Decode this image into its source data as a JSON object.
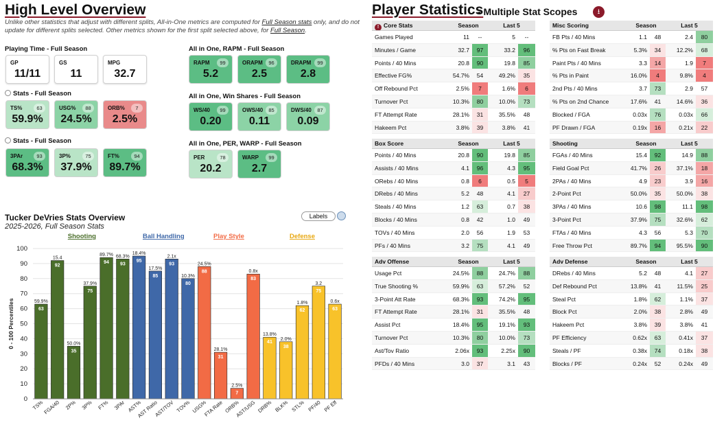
{
  "overview": {
    "title": "High Level Overview",
    "note_pre": "Unlike other statistics that adjust with different splits, All-in-One metrics are computed for ",
    "note_link1": "Full Season stats",
    "note_mid": " only, and do not update for different splits selected. Other metrics shown for the first split selected above, for ",
    "note_link2": "Full Season",
    "note_end": ".",
    "playing_time": {
      "label": "Playing Time - Full Season",
      "cards": [
        {
          "label": "GP",
          "value": "11/11"
        },
        {
          "label": "GS",
          "value": "11"
        },
        {
          "label": "MPG",
          "value": "32.7"
        }
      ]
    },
    "stats1": {
      "label": "Stats - Full Season",
      "cards": [
        {
          "label": "TS%",
          "pct": "63",
          "value": "59.9%"
        },
        {
          "label": "USG%",
          "pct": "88",
          "value": "24.5%"
        },
        {
          "label": "ORB%",
          "pct": "7",
          "value": "2.5%"
        }
      ]
    },
    "stats2": {
      "label": "Stats - Full Season",
      "cards": [
        {
          "label": "3PAr",
          "pct": "93",
          "value": "68.3%"
        },
        {
          "label": "3P%",
          "pct": "75",
          "value": "37.9%"
        },
        {
          "label": "FT%",
          "pct": "94",
          "value": "89.7%"
        }
      ]
    },
    "rapm": {
      "label": "All in One, RAPM - Full Season",
      "cards": [
        {
          "label": "RAPM",
          "pct": "99",
          "value": "5.2"
        },
        {
          "label": "ORAPM",
          "pct": "96",
          "value": "2.5"
        },
        {
          "label": "DRAPM",
          "pct": "99",
          "value": "2.8"
        }
      ]
    },
    "ws": {
      "label": "All in One, Win Shares - Full Season",
      "cards": [
        {
          "label": "WS/40",
          "pct": "99",
          "value": "0.20"
        },
        {
          "label": "OWS/40",
          "pct": "85",
          "value": "0.11"
        },
        {
          "label": "DWS/40",
          "pct": "87",
          "value": "0.09"
        }
      ]
    },
    "per": {
      "label": "All in One, PER, WARP - Full Season",
      "cards": [
        {
          "label": "PER",
          "pct": "78",
          "value": "20.2"
        },
        {
          "label": "WARP",
          "pct": "99",
          "value": "2.7"
        }
      ]
    }
  },
  "chart_header": {
    "title": "Tucker DeVries Stats Overview",
    "subtitle": "2025-2026, Full Season Stats",
    "labels_button": "Labels"
  },
  "chart_data": {
    "type": "bar",
    "title": "Tucker DeVries Stats Overview",
    "ylabel": "0 - 100 Percentiles",
    "ylim": [
      0,
      100
    ],
    "yticks": [
      0,
      10,
      20,
      30,
      40,
      50,
      60,
      70,
      80,
      90,
      100
    ],
    "groups": [
      {
        "name": "Shooting",
        "color": "#4a6e2a",
        "labelColor": "#4a6e2a"
      },
      {
        "name": "Ball Handling",
        "color": "#3f68a8",
        "labelColor": "#3f68a8"
      },
      {
        "name": "Play Style",
        "color": "#f26b45",
        "labelColor": "#f26b45"
      },
      {
        "name": "Defense",
        "color": "#f8c22a",
        "labelColor": "#e8a812"
      }
    ],
    "categories": [
      "TS%",
      "FGA/40",
      "2P%",
      "3P%",
      "FT%",
      "3PAr",
      "AST%",
      "AST Ratio",
      "AST/TOV",
      "TOV%",
      "USG%",
      "FTA Rate",
      "ORB%",
      "AST/USG",
      "DRB%",
      "BLK%",
      "STL%",
      "PF/40",
      "PF Eff"
    ],
    "group_index": [
      0,
      0,
      0,
      0,
      0,
      0,
      1,
      1,
      1,
      1,
      2,
      2,
      2,
      2,
      3,
      3,
      3,
      3,
      3
    ],
    "values": [
      63,
      92,
      35,
      75,
      94,
      93,
      95,
      85,
      93,
      80,
      88,
      31,
      7,
      83,
      41,
      38,
      62,
      75,
      63
    ],
    "raw_labels": [
      "59.9%",
      "15.4",
      "50.0%",
      "37.9%",
      "89.7%",
      "68.3%",
      "18.4%",
      "17.5%",
      "2.1x",
      "10.3%",
      "24.5%",
      "28.1%",
      "2.5%",
      "0.8x",
      "13.8%",
      "2.0%",
      "1.8%",
      "3.2",
      "0.6x"
    ]
  },
  "player_stats": {
    "title": "Player Statistics",
    "subtitle": "- Multiple Stat Scopes",
    "icon": "download-icon",
    "col_season": "Season",
    "col_last5": "Last 5",
    "tables": [
      {
        "id": "core",
        "title": "Core Stats",
        "has_icon": true,
        "rows": [
          [
            "Games Played",
            "11",
            "--",
            "5",
            "--"
          ],
          [
            "Minutes / Game",
            "32.7",
            "97",
            "33.2",
            "96"
          ],
          [
            "Points / 40 Mins",
            "20.8",
            "90",
            "19.8",
            "85"
          ],
          [
            "Effective FG%",
            "54.7%",
            "54",
            "49.2%",
            "35"
          ],
          [
            "Off Rebound Pct",
            "2.5%",
            "7",
            "1.6%",
            "6"
          ],
          [
            "Turnover Pct",
            "10.3%",
            "80",
            "10.0%",
            "73"
          ],
          [
            "FT Attempt Rate",
            "28.1%",
            "31",
            "35.5%",
            "48"
          ],
          [
            "Hakeem Pct",
            "3.8%",
            "39",
            "3.8%",
            "41"
          ]
        ]
      },
      {
        "id": "misc",
        "title": "Misc Scoring",
        "has_icon": false,
        "rows": [
          [
            "FB Pts / 40 Mins",
            "1.1",
            "48",
            "2.4",
            "80"
          ],
          [
            "% Pts on Fast Break",
            "5.3%",
            "34",
            "12.2%",
            "68"
          ],
          [
            "Paint Pts / 40 Mins",
            "3.3",
            "14",
            "1.9",
            "7"
          ],
          [
            "% Pts in Paint",
            "16.0%",
            "4",
            "9.8%",
            "4"
          ],
          [
            "2nd Pts / 40 Mins",
            "3.7",
            "73",
            "2.9",
            "57"
          ],
          [
            "% Pts on 2nd Chance",
            "17.6%",
            "41",
            "14.6%",
            "36"
          ],
          [
            "Blocked / FGA",
            "0.03x",
            "76",
            "0.03x",
            "66"
          ],
          [
            "PF Drawn / FGA",
            "0.19x",
            "16",
            "0.21x",
            "22"
          ]
        ]
      },
      {
        "id": "box",
        "title": "Box Score",
        "has_icon": false,
        "rows": [
          [
            "Points / 40 Mins",
            "20.8",
            "90",
            "19.8",
            "85"
          ],
          [
            "Assists / 40 Mins",
            "4.1",
            "96",
            "4.3",
            "95"
          ],
          [
            "ORebs / 40 Mins",
            "0.8",
            "6",
            "0.5",
            "5"
          ],
          [
            "DRebs / 40 Mins",
            "5.2",
            "48",
            "4.1",
            "27"
          ],
          [
            "Steals / 40 Mins",
            "1.2",
            "63",
            "0.7",
            "38"
          ],
          [
            "Blocks / 40 Mins",
            "0.8",
            "42",
            "1.0",
            "49"
          ],
          [
            "TOVs / 40 Mins",
            "2.0",
            "56",
            "1.9",
            "53"
          ],
          [
            "PFs / 40 Mins",
            "3.2",
            "75",
            "4.1",
            "49"
          ]
        ]
      },
      {
        "id": "shooting",
        "title": "Shooting",
        "has_icon": false,
        "rows": [
          [
            "FGAs / 40 Mins",
            "15.4",
            "92",
            "14.9",
            "88"
          ],
          [
            "Field Goal Pct",
            "41.7%",
            "26",
            "37.1%",
            "18"
          ],
          [
            "2PAs / 40 Mins",
            "4.9",
            "23",
            "3.9",
            "16"
          ],
          [
            "2-Point Pct",
            "50.0%",
            "35",
            "50.0%",
            "38"
          ],
          [
            "3PAs / 40 Mins",
            "10.6",
            "98",
            "11.1",
            "98"
          ],
          [
            "3-Point Pct",
            "37.9%",
            "75",
            "32.6%",
            "62"
          ],
          [
            "FTAs / 40 Mins",
            "4.3",
            "56",
            "5.3",
            "70"
          ],
          [
            "Free Throw Pct",
            "89.7%",
            "94",
            "95.5%",
            "90"
          ]
        ]
      },
      {
        "id": "advoff",
        "title": "Adv Offense",
        "has_icon": false,
        "rows": [
          [
            "Usage Pct",
            "24.5%",
            "88",
            "24.7%",
            "88"
          ],
          [
            "True Shooting %",
            "59.9%",
            "63",
            "57.2%",
            "52"
          ],
          [
            "3-Point Att Rate",
            "68.3%",
            "93",
            "74.2%",
            "95"
          ],
          [
            "FT Attempt Rate",
            "28.1%",
            "31",
            "35.5%",
            "48"
          ],
          [
            "Assist Pct",
            "18.4%",
            "95",
            "19.1%",
            "93"
          ],
          [
            "Turnover Pct",
            "10.3%",
            "80",
            "10.0%",
            "73"
          ],
          [
            "Ast/Tov Ratio",
            "2.06x",
            "93",
            "2.25x",
            "90"
          ],
          [
            "PFDs / 40 Mins",
            "3.0",
            "37",
            "3.1",
            "43"
          ]
        ]
      },
      {
        "id": "advdef",
        "title": "Adv Defense",
        "has_icon": false,
        "rows": [
          [
            "DRebs / 40 Mins",
            "5.2",
            "48",
            "4.1",
            "27"
          ],
          [
            "Def Rebound Pct",
            "13.8%",
            "41",
            "11.5%",
            "25"
          ],
          [
            "Steal Pct",
            "1.8%",
            "62",
            "1.1%",
            "37"
          ],
          [
            "Block Pct",
            "2.0%",
            "38",
            "2.8%",
            "49"
          ],
          [
            "Hakeem Pct",
            "3.8%",
            "39",
            "3.8%",
            "41"
          ],
          [
            "PF Efficiency",
            "0.62x",
            "63",
            "0.41x",
            "37"
          ],
          [
            "Steals / PF",
            "0.38x",
            "74",
            "0.18x",
            "38"
          ],
          [
            "Blocks / PF",
            "0.24x",
            "52",
            "0.24x",
            "49"
          ]
        ]
      }
    ]
  }
}
